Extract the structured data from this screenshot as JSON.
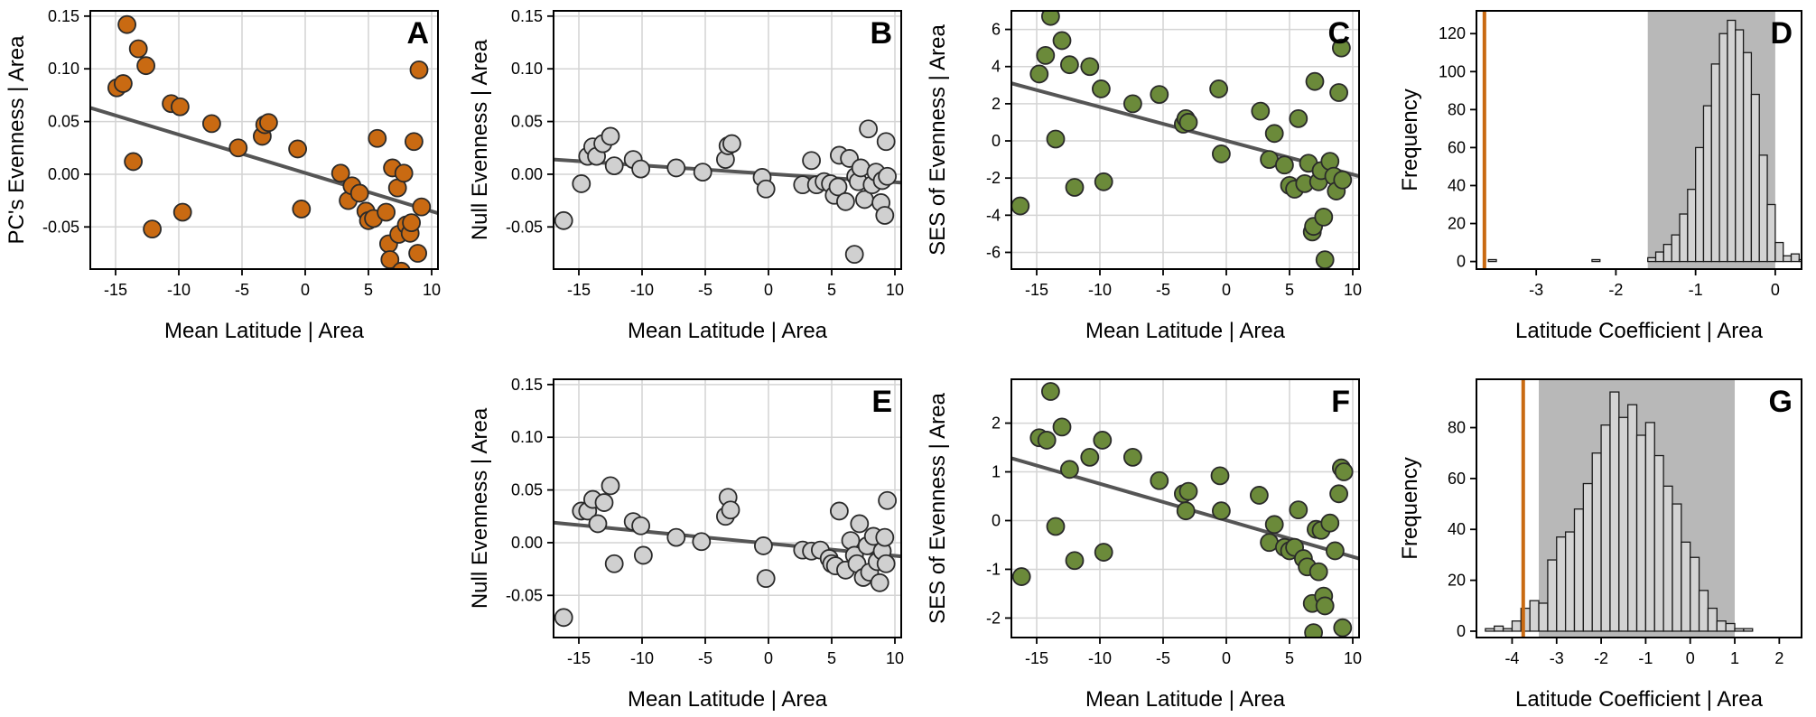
{
  "colors": {
    "orange": "#c96a12",
    "green": "#6b8a3a",
    "grey_point": "#d0d0d0",
    "trend": "#555555",
    "ci_band": "#b8b8b8",
    "hist_bar": "#d3d3d3",
    "grid": "#d4d4d4"
  },
  "chart_data": [
    {
      "id": "A",
      "type": "scatter",
      "panel_label": "A",
      "xlabel": "Mean Latitude | Area",
      "ylabel": "PC's Evenness | Area",
      "xlim": [
        -17,
        10.5
      ],
      "ylim": [
        -0.09,
        0.155
      ],
      "xticks": [
        -15,
        -10,
        -5,
        0,
        5,
        10
      ],
      "xtick_labels": [
        "-15",
        "-10",
        "-5",
        "0",
        "5",
        "10"
      ],
      "yticks": [
        -0.05,
        0,
        0.05,
        0.1,
        0.15
      ],
      "ytick_labels": [
        "-0.05",
        "0.00",
        "0.05",
        "0.10",
        "0.15"
      ],
      "grid": true,
      "color": "orange",
      "trend": {
        "x": [
          -17,
          10.5
        ],
        "y": [
          0.063,
          -0.037
        ]
      },
      "points": [
        [
          -14.9,
          0.082
        ],
        [
          -14.4,
          0.086
        ],
        [
          -14.1,
          0.142
        ],
        [
          -13.6,
          0.012
        ],
        [
          -13.2,
          0.119
        ],
        [
          -12.6,
          0.103
        ],
        [
          -12.1,
          -0.052
        ],
        [
          -10.6,
          0.067
        ],
        [
          -9.9,
          0.064
        ],
        [
          -9.7,
          -0.036
        ],
        [
          -7.4,
          0.048
        ],
        [
          -5.3,
          0.025
        ],
        [
          -3.4,
          0.036
        ],
        [
          -3.2,
          0.047
        ],
        [
          -2.9,
          0.049
        ],
        [
          -0.6,
          0.024
        ],
        [
          -0.3,
          -0.033
        ],
        [
          2.8,
          0.001
        ],
        [
          3.4,
          -0.025
        ],
        [
          3.7,
          -0.011
        ],
        [
          4.3,
          -0.018
        ],
        [
          4.8,
          -0.035
        ],
        [
          5.0,
          -0.044
        ],
        [
          5.4,
          -0.042
        ],
        [
          5.7,
          0.034
        ],
        [
          6.4,
          -0.036
        ],
        [
          6.6,
          -0.066
        ],
        [
          6.7,
          -0.081
        ],
        [
          6.9,
          0.006
        ],
        [
          7.3,
          -0.013
        ],
        [
          7.4,
          -0.057
        ],
        [
          7.6,
          -0.092
        ],
        [
          7.8,
          0.001
        ],
        [
          8.0,
          -0.048
        ],
        [
          8.3,
          -0.056
        ],
        [
          8.4,
          -0.046
        ],
        [
          8.6,
          0.031
        ],
        [
          8.9,
          -0.075
        ],
        [
          9.0,
          0.099
        ],
        [
          9.2,
          -0.031
        ]
      ]
    },
    {
      "id": "B",
      "type": "scatter",
      "panel_label": "B",
      "xlabel": "Mean Latitude | Area",
      "ylabel": "Null Evenness | Area",
      "xlim": [
        -17,
        10.5
      ],
      "ylim": [
        -0.09,
        0.155
      ],
      "xticks": [
        -15,
        -10,
        -5,
        0,
        5,
        10
      ],
      "xtick_labels": [
        "-15",
        "-10",
        "-5",
        "0",
        "5",
        "10"
      ],
      "yticks": [
        -0.05,
        0,
        0.05,
        0.1,
        0.15
      ],
      "ytick_labels": [
        "-0.05",
        "0.00",
        "0.05",
        "0.10",
        "0.15"
      ],
      "grid": true,
      "color": "grey_point",
      "trend": {
        "x": [
          -17,
          10.5
        ],
        "y": [
          0.014,
          -0.008
        ]
      },
      "points": [
        [
          -16.2,
          -0.044
        ],
        [
          -14.8,
          -0.009
        ],
        [
          -14.3,
          0.017
        ],
        [
          -13.9,
          0.026
        ],
        [
          -13.6,
          0.017
        ],
        [
          -13.1,
          0.029
        ],
        [
          -12.5,
          0.036
        ],
        [
          -12.2,
          0.008
        ],
        [
          -10.7,
          0.014
        ],
        [
          -10.1,
          0.005
        ],
        [
          -7.3,
          0.006
        ],
        [
          -5.2,
          0.002
        ],
        [
          -3.4,
          0.014
        ],
        [
          -3.2,
          0.027
        ],
        [
          -2.9,
          0.029
        ],
        [
          -0.5,
          -0.003
        ],
        [
          -0.2,
          -0.014
        ],
        [
          2.7,
          -0.01
        ],
        [
          3.4,
          0.013
        ],
        [
          3.8,
          -0.01
        ],
        [
          4.4,
          -0.007
        ],
        [
          4.9,
          -0.009
        ],
        [
          5.2,
          -0.02
        ],
        [
          5.5,
          -0.012
        ],
        [
          5.6,
          0.018
        ],
        [
          6.1,
          -0.026
        ],
        [
          6.4,
          0.015
        ],
        [
          6.8,
          -0.076
        ],
        [
          6.9,
          -0.002
        ],
        [
          7.1,
          -0.007
        ],
        [
          7.3,
          0.006
        ],
        [
          7.6,
          -0.024
        ],
        [
          7.9,
          0.043
        ],
        [
          8.2,
          -0.01
        ],
        [
          8.5,
          0.002
        ],
        [
          8.9,
          -0.027
        ],
        [
          9.0,
          -0.006
        ],
        [
          9.2,
          -0.039
        ],
        [
          9.3,
          0.031
        ],
        [
          9.4,
          -0.002
        ]
      ]
    },
    {
      "id": "C",
      "type": "scatter",
      "panel_label": "C",
      "xlabel": "Mean Latitude | Area",
      "ylabel": "SES of Evenness | Area",
      "xlim": [
        -17,
        10.5
      ],
      "ylim": [
        -6.9,
        7.0
      ],
      "xticks": [
        -15,
        -10,
        -5,
        0,
        5,
        10
      ],
      "xtick_labels": [
        "-15",
        "-10",
        "-5",
        "0",
        "5",
        "10"
      ],
      "yticks": [
        -6,
        -4,
        -2,
        0,
        2,
        4,
        6
      ],
      "ytick_labels": [
        "-6",
        "-4",
        "-2",
        "0",
        "2",
        "4",
        "6"
      ],
      "grid": true,
      "color": "green",
      "trend": {
        "x": [
          -17,
          10.5
        ],
        "y": [
          3.1,
          -1.9
        ]
      },
      "points": [
        [
          -16.3,
          -3.5
        ],
        [
          -14.8,
          3.6
        ],
        [
          -14.3,
          4.6
        ],
        [
          -13.9,
          6.7
        ],
        [
          -13.5,
          0.1
        ],
        [
          -13.0,
          5.4
        ],
        [
          -12.4,
          4.1
        ],
        [
          -12.0,
          -2.5
        ],
        [
          -10.8,
          4.0
        ],
        [
          -9.9,
          2.8
        ],
        [
          -9.7,
          -2.2
        ],
        [
          -7.4,
          2.0
        ],
        [
          -5.3,
          2.5
        ],
        [
          -3.4,
          0.9
        ],
        [
          -3.2,
          1.2
        ],
        [
          -3.0,
          1.0
        ],
        [
          -0.6,
          2.8
        ],
        [
          -0.4,
          -0.7
        ],
        [
          2.7,
          1.6
        ],
        [
          3.4,
          -1.0
        ],
        [
          3.8,
          0.4
        ],
        [
          4.6,
          -1.3
        ],
        [
          5.0,
          -2.4
        ],
        [
          5.4,
          -2.6
        ],
        [
          5.7,
          1.2
        ],
        [
          6.2,
          -2.3
        ],
        [
          6.5,
          -1.2
        ],
        [
          6.8,
          -4.9
        ],
        [
          6.9,
          -4.6
        ],
        [
          7.0,
          3.2
        ],
        [
          7.3,
          -2.2
        ],
        [
          7.5,
          -1.6
        ],
        [
          7.7,
          -4.1
        ],
        [
          7.8,
          -6.4
        ],
        [
          8.2,
          -1.1
        ],
        [
          8.5,
          -1.9
        ],
        [
          8.7,
          -2.7
        ],
        [
          8.9,
          2.6
        ],
        [
          9.1,
          5.0
        ],
        [
          9.2,
          -2.1
        ]
      ]
    },
    {
      "id": "D",
      "type": "bar",
      "panel_label": "D",
      "xlabel": "Latitude Coefficient | Area",
      "ylabel": "Frequency",
      "xlim": [
        -3.75,
        0.33
      ],
      "ylim": [
        -4,
        132
      ],
      "xticks": [
        -3,
        -2,
        -1,
        0
      ],
      "xtick_labels": [
        "-3",
        "-2",
        "-1",
        "0"
      ],
      "yticks": [
        0,
        20,
        40,
        60,
        80,
        100,
        120
      ],
      "ytick_labels": [
        "0",
        "20",
        "40",
        "60",
        "80",
        "100",
        "120"
      ],
      "grid": false,
      "ci": [
        -1.6,
        0.0
      ],
      "observed": -3.65,
      "bins": {
        "start": -3.6,
        "width": 0.1,
        "counts": [
          1,
          0,
          0,
          0,
          0,
          0,
          0,
          0,
          0,
          0,
          0,
          0,
          0,
          1,
          0,
          0,
          0,
          0,
          0,
          0,
          2,
          5,
          9,
          14,
          25,
          38,
          60,
          82,
          104,
          120,
          127,
          122,
          110,
          88,
          56,
          30,
          10,
          3,
          4,
          1
        ]
      }
    },
    {
      "id": "E",
      "type": "scatter",
      "panel_label": "E",
      "xlabel": "Mean Latitude | Area",
      "ylabel": "Null Evenness | Area",
      "xlim": [
        -17,
        10.5
      ],
      "ylim": [
        -0.09,
        0.155
      ],
      "xticks": [
        -15,
        -10,
        -5,
        0,
        5,
        10
      ],
      "xtick_labels": [
        "-15",
        "-10",
        "-5",
        "0",
        "5",
        "10"
      ],
      "yticks": [
        -0.05,
        0,
        0.05,
        0.1,
        0.15
      ],
      "ytick_labels": [
        "-0.05",
        "0.00",
        "0.05",
        "0.10",
        "0.15"
      ],
      "grid": true,
      "color": "grey_point",
      "trend": {
        "x": [
          -17,
          10.5
        ],
        "y": [
          0.019,
          -0.013
        ]
      },
      "points": [
        [
          -16.2,
          -0.071
        ],
        [
          -14.8,
          0.03
        ],
        [
          -14.3,
          0.03
        ],
        [
          -13.9,
          0.041
        ],
        [
          -13.5,
          0.018
        ],
        [
          -13.0,
          0.038
        ],
        [
          -12.5,
          0.054
        ],
        [
          -12.2,
          -0.02
        ],
        [
          -10.7,
          0.02
        ],
        [
          -10.1,
          0.016
        ],
        [
          -9.9,
          -0.012
        ],
        [
          -7.3,
          0.005
        ],
        [
          -5.3,
          0.001
        ],
        [
          -3.4,
          0.025
        ],
        [
          -3.2,
          0.043
        ],
        [
          -3.0,
          0.031
        ],
        [
          -0.4,
          -0.003
        ],
        [
          -0.2,
          -0.034
        ],
        [
          2.7,
          -0.007
        ],
        [
          3.4,
          -0.008
        ],
        [
          4.1,
          -0.007
        ],
        [
          4.8,
          -0.015
        ],
        [
          5.0,
          -0.02
        ],
        [
          5.3,
          -0.022
        ],
        [
          5.6,
          0.03
        ],
        [
          6.1,
          -0.026
        ],
        [
          6.5,
          0.002
        ],
        [
          6.8,
          -0.012
        ],
        [
          7.0,
          -0.02
        ],
        [
          7.2,
          0.018
        ],
        [
          7.5,
          -0.033
        ],
        [
          7.8,
          -0.003
        ],
        [
          8.0,
          -0.028
        ],
        [
          8.3,
          0.006
        ],
        [
          8.6,
          -0.018
        ],
        [
          8.8,
          -0.038
        ],
        [
          9.0,
          -0.008
        ],
        [
          9.2,
          0.005
        ],
        [
          9.4,
          0.04
        ],
        [
          9.3,
          -0.02
        ]
      ]
    },
    {
      "id": "F",
      "type": "scatter",
      "panel_label": "F",
      "xlabel": "Mean Latitude | Area",
      "ylabel": "SES of Evenness | Area",
      "xlim": [
        -17,
        10.5
      ],
      "ylim": [
        -2.4,
        2.9
      ],
      "xticks": [
        -15,
        -10,
        -5,
        0,
        5,
        10
      ],
      "xtick_labels": [
        "-15",
        "-10",
        "-5",
        "0",
        "5",
        "10"
      ],
      "yticks": [
        -2,
        -1,
        0,
        1,
        2
      ],
      "ytick_labels": [
        "-2",
        "-1",
        "0",
        "1",
        "2"
      ],
      "grid": true,
      "color": "green",
      "trend": {
        "x": [
          -17,
          10.5
        ],
        "y": [
          1.28,
          -0.78
        ]
      },
      "points": [
        [
          -16.2,
          -1.15
        ],
        [
          -14.8,
          1.7
        ],
        [
          -14.2,
          1.65
        ],
        [
          -13.9,
          2.65
        ],
        [
          -13.5,
          -0.12
        ],
        [
          -13.0,
          1.92
        ],
        [
          -12.4,
          1.05
        ],
        [
          -12.0,
          -0.82
        ],
        [
          -10.8,
          1.3
        ],
        [
          -9.8,
          1.65
        ],
        [
          -9.7,
          -0.65
        ],
        [
          -7.4,
          1.3
        ],
        [
          -5.3,
          0.82
        ],
        [
          -3.4,
          0.55
        ],
        [
          -3.2,
          0.2
        ],
        [
          -3.0,
          0.6
        ],
        [
          -0.5,
          0.92
        ],
        [
          -0.4,
          0.2
        ],
        [
          2.6,
          0.52
        ],
        [
          3.4,
          -0.45
        ],
        [
          3.8,
          -0.08
        ],
        [
          4.6,
          -0.55
        ],
        [
          5.0,
          -0.62
        ],
        [
          5.4,
          -0.55
        ],
        [
          5.7,
          0.22
        ],
        [
          6.1,
          -0.78
        ],
        [
          6.4,
          -0.95
        ],
        [
          6.8,
          -1.7
        ],
        [
          6.9,
          -2.3
        ],
        [
          7.1,
          -0.18
        ],
        [
          7.3,
          -1.05
        ],
        [
          7.5,
          -0.2
        ],
        [
          7.7,
          -1.55
        ],
        [
          7.8,
          -1.75
        ],
        [
          8.2,
          -0.05
        ],
        [
          8.6,
          -0.62
        ],
        [
          8.9,
          0.55
        ],
        [
          9.1,
          1.08
        ],
        [
          9.2,
          -2.2
        ],
        [
          9.3,
          1.0
        ]
      ]
    },
    {
      "id": "G",
      "type": "bar",
      "panel_label": "G",
      "xlabel": "Latitude Coefficient | Area",
      "ylabel": "Frequency",
      "xlim": [
        -4.8,
        2.5
      ],
      "ylim": [
        -2.5,
        99
      ],
      "xticks": [
        -4,
        -3,
        -2,
        -1,
        0,
        1,
        2
      ],
      "xtick_labels": [
        "-4",
        "-3",
        "-2",
        "-1",
        "0",
        "1",
        "2"
      ],
      "yticks": [
        0,
        20,
        40,
        60,
        80
      ],
      "ytick_labels": [
        "0",
        "20",
        "40",
        "60",
        "80"
      ],
      "grid": false,
      "ci": [
        -3.4,
        1.0
      ],
      "observed": -3.75,
      "bins": {
        "start": -4.6,
        "width": 0.2,
        "counts": [
          1,
          2,
          1,
          4,
          9,
          12,
          11,
          28,
          37,
          39,
          48,
          58,
          70,
          81,
          94,
          84,
          89,
          77,
          82,
          69,
          57,
          50,
          35,
          29,
          16,
          9,
          4,
          3,
          1,
          1
        ]
      }
    }
  ]
}
